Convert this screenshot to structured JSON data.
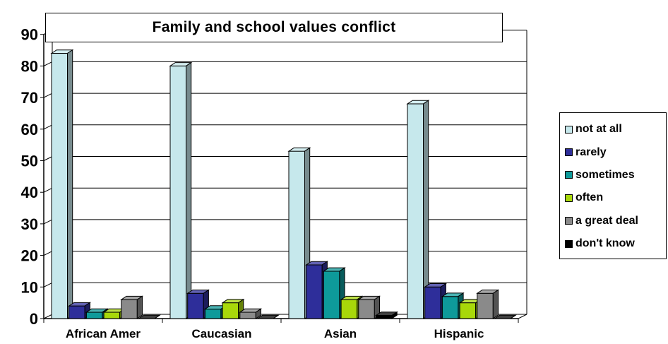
{
  "chart_data": {
    "type": "bar",
    "title": "Family and school values conflict",
    "categories": [
      "African Amer",
      "Caucasian",
      "Asian",
      "Hispanic"
    ],
    "series": [
      {
        "name": "not at all",
        "color": "#c6e8ec",
        "values": [
          84,
          80,
          53,
          68
        ]
      },
      {
        "name": "rarely",
        "color": "#2e2e9a",
        "values": [
          4,
          8,
          17,
          10
        ]
      },
      {
        "name": "sometimes",
        "color": "#0e9a9a",
        "values": [
          2,
          3,
          15,
          7
        ]
      },
      {
        "name": "often",
        "color": "#a8d80a",
        "values": [
          2,
          5,
          6,
          5
        ]
      },
      {
        "name": "a great deal",
        "color": "#8a8a8a",
        "values": [
          6,
          2,
          6,
          8
        ]
      },
      {
        "name": "don't know",
        "color": "#000000",
        "values": [
          0,
          0,
          1,
          0
        ]
      }
    ],
    "ylim": [
      0,
      90
    ],
    "yticks": [
      "0",
      "10",
      "20",
      "30",
      "40",
      "50",
      "60",
      "70",
      "80",
      "90"
    ],
    "xlabel": "",
    "ylabel": "",
    "grid": true,
    "legend_position": "right"
  }
}
